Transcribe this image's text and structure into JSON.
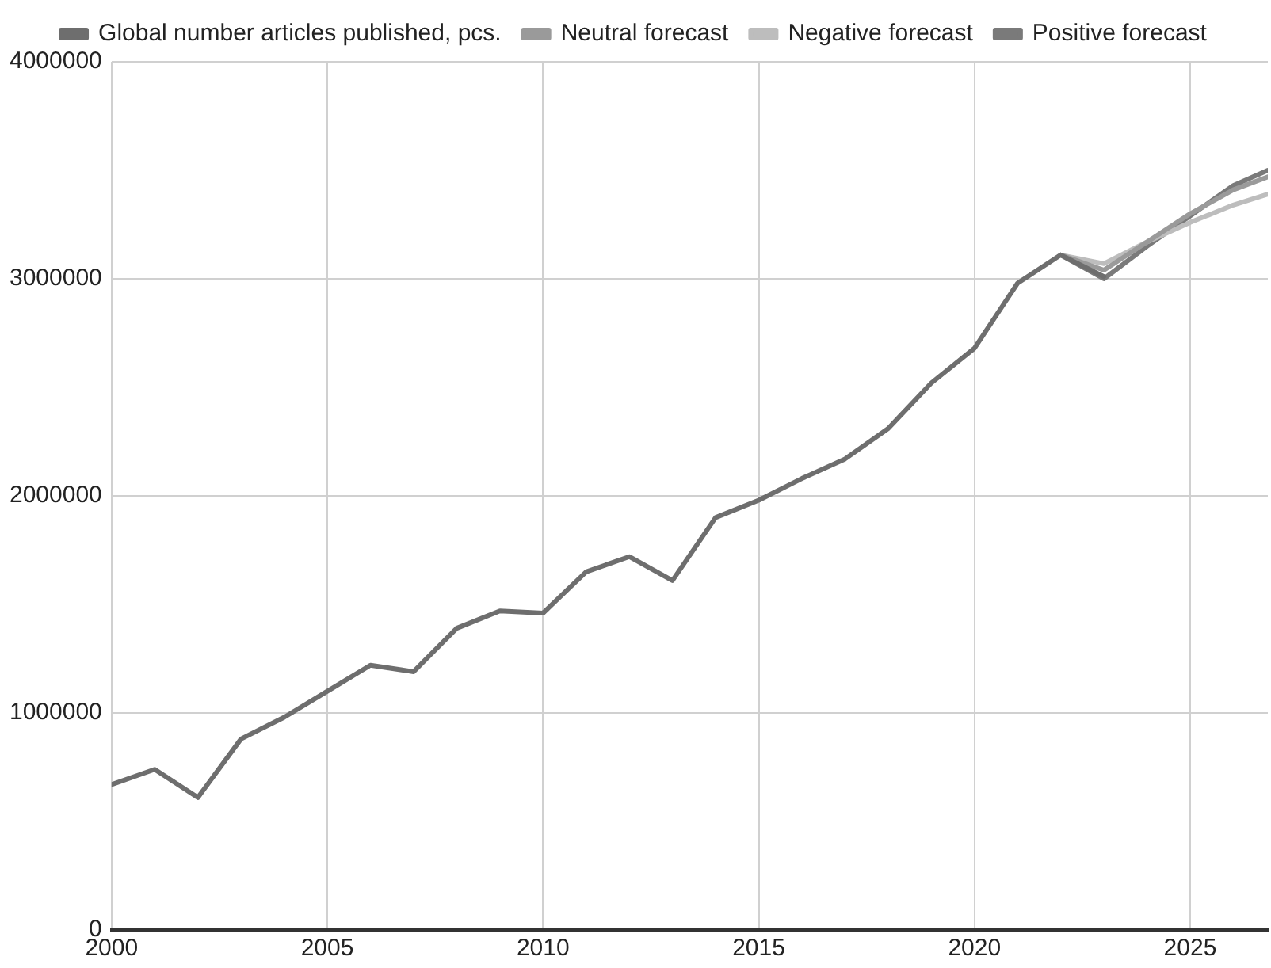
{
  "chart_data": {
    "type": "line",
    "xlim": [
      2000,
      2026.8
    ],
    "xticks": [
      2000,
      2005,
      2010,
      2015,
      2020,
      2025
    ],
    "ylim": [
      0,
      4000000
    ],
    "yticks": [
      0,
      1000000,
      2000000,
      3000000,
      4000000
    ],
    "grid": true,
    "legend": "top",
    "marker": "none",
    "line_style": "solid",
    "series": [
      {
        "name": "Global number articles published, pcs.",
        "color": "#6e6e6e",
        "x": [
          2000,
          2001,
          2002,
          2003,
          2004,
          2005,
          2006,
          2007,
          2008,
          2009,
          2010,
          2011,
          2012,
          2013,
          2014,
          2015,
          2016,
          2017,
          2018,
          2019,
          2020,
          2021,
          2022,
          2023
        ],
        "values": [
          670000,
          740000,
          610000,
          880000,
          980000,
          1100000,
          1220000,
          1190000,
          1390000,
          1470000,
          1460000,
          1650000,
          1720000,
          1610000,
          1900000,
          1980000,
          2080000,
          2170000,
          2310000,
          2520000,
          2680000,
          2980000,
          3110000,
          3010000
        ]
      },
      {
        "name": "Neutral forecast",
        "color": "#9a9a9a",
        "x": [
          2022,
          2023,
          2024,
          2025,
          2026,
          2026.8
        ],
        "values": [
          3110000,
          3040000,
          3170000,
          3300000,
          3410000,
          3470000
        ]
      },
      {
        "name": "Negative forecast",
        "color": "#bdbdbd",
        "x": [
          2022,
          2023,
          2024,
          2025,
          2026,
          2026.8
        ],
        "values": [
          3110000,
          3070000,
          3170000,
          3260000,
          3340000,
          3390000
        ]
      },
      {
        "name": "Positive forecast",
        "color": "#7a7a7a",
        "x": [
          2022,
          2023,
          2024,
          2025,
          2026,
          2026.8
        ],
        "values": [
          3110000,
          3000000,
          3150000,
          3290000,
          3430000,
          3500000
        ]
      }
    ]
  }
}
